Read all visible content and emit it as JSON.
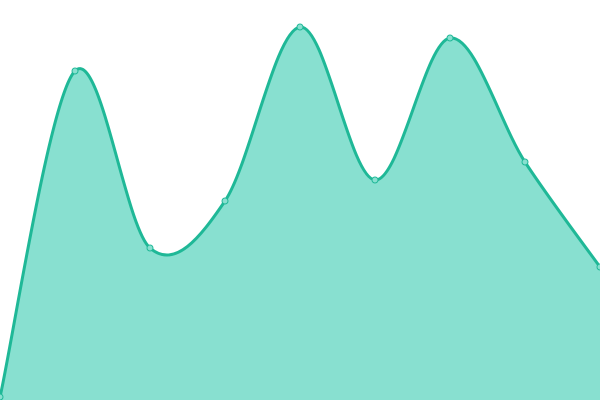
{
  "chart_data": {
    "type": "area",
    "x": [
      0,
      1,
      2,
      3,
      4,
      5,
      6,
      7,
      8
    ],
    "values": [
      3,
      329,
      152,
      199,
      373,
      220,
      362,
      238,
      133
    ],
    "ylim": [
      0,
      400
    ],
    "grid": false,
    "axes_visible": false,
    "curve": "smooth",
    "colors": {
      "fill": "#88e0d0",
      "stroke": "#1fb897",
      "point_fill": "#88e0d0",
      "point_stroke": "#1fb897"
    }
  }
}
